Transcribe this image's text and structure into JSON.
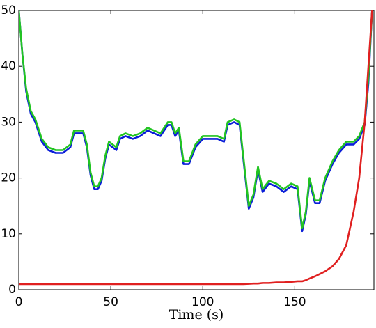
{
  "chart_data": {
    "type": "line",
    "xlabel": "Time (s)",
    "x": [
      0,
      2,
      4,
      6.5,
      9,
      12.5,
      16,
      20,
      24,
      28,
      30,
      32,
      35,
      37,
      39,
      41,
      43,
      45,
      47,
      49,
      51,
      53,
      55,
      58,
      62,
      66,
      70,
      73.5,
      77,
      81,
      83,
      85,
      87,
      89.5,
      92.5,
      96,
      100,
      104,
      108,
      111.5,
      113.5,
      117,
      120,
      122,
      125,
      127.5,
      130,
      132.5,
      136,
      140,
      144,
      148,
      151.5,
      154,
      156,
      158,
      161,
      163.5,
      166.5,
      170.5,
      174,
      178,
      182,
      185,
      188,
      190,
      192
    ],
    "series": [
      {
        "color": "#0a1ed8",
        "values": [
          50,
          42,
          35.5,
          31.5,
          30,
          26.5,
          25,
          24.5,
          24.5,
          25.5,
          28,
          28,
          28,
          25.5,
          20.5,
          18,
          18,
          19.5,
          23.5,
          26,
          25.5,
          25,
          27,
          27.5,
          27,
          27.5,
          28.5,
          28,
          27.5,
          29.5,
          29.5,
          27.5,
          28.5,
          22.5,
          22.5,
          25.5,
          27,
          27,
          27,
          26.5,
          29.5,
          30,
          29.5,
          23.5,
          14.5,
          16.5,
          21.5,
          17.5,
          19,
          18.5,
          17.5,
          18.5,
          18,
          10.5,
          13.5,
          19.5,
          15.5,
          15.5,
          19.5,
          22.5,
          24.5,
          26,
          26,
          27,
          29.5,
          37,
          50
        ]
      },
      {
        "color": "#22c422",
        "values": [
          50,
          42,
          36,
          32,
          30.5,
          27,
          25.5,
          25,
          25,
          26,
          28.5,
          28.5,
          28.5,
          26,
          21,
          18.5,
          18.5,
          20,
          24,
          26.5,
          26,
          25.5,
          27.5,
          28,
          27.5,
          28,
          29,
          28.5,
          28,
          30,
          30,
          28,
          29,
          23,
          23,
          26,
          27.5,
          27.5,
          27.5,
          27,
          30,
          30.5,
          30,
          24,
          15,
          17,
          22,
          18,
          19.5,
          19,
          18,
          19,
          18.5,
          11,
          14,
          20,
          16,
          16,
          20,
          23,
          25,
          26.5,
          26.5,
          27.5,
          30,
          38,
          50
        ]
      },
      {
        "color": "#e02020",
        "values": [
          1,
          1,
          1,
          1,
          1,
          1,
          1,
          1,
          1,
          1,
          1,
          1,
          1,
          1,
          1,
          1,
          1,
          1,
          1,
          1,
          1,
          1,
          1,
          1,
          1,
          1,
          1,
          1,
          1,
          1,
          1,
          1,
          1,
          1,
          1,
          1,
          1,
          1,
          1,
          1,
          1,
          1,
          1,
          1,
          1.05,
          1.1,
          1.1,
          1.2,
          1.2,
          1.3,
          1.3,
          1.4,
          1.5,
          1.5,
          1.7,
          2,
          2.4,
          2.8,
          3.3,
          4.2,
          5.5,
          8,
          14,
          20,
          30,
          40,
          50
        ]
      }
    ],
    "xlim": [
      0,
      193
    ],
    "ylim": [
      0,
      50
    ],
    "xticks": [
      0,
      50,
      100,
      150
    ],
    "yticks": [
      0,
      10,
      20,
      30,
      40,
      50
    ]
  }
}
